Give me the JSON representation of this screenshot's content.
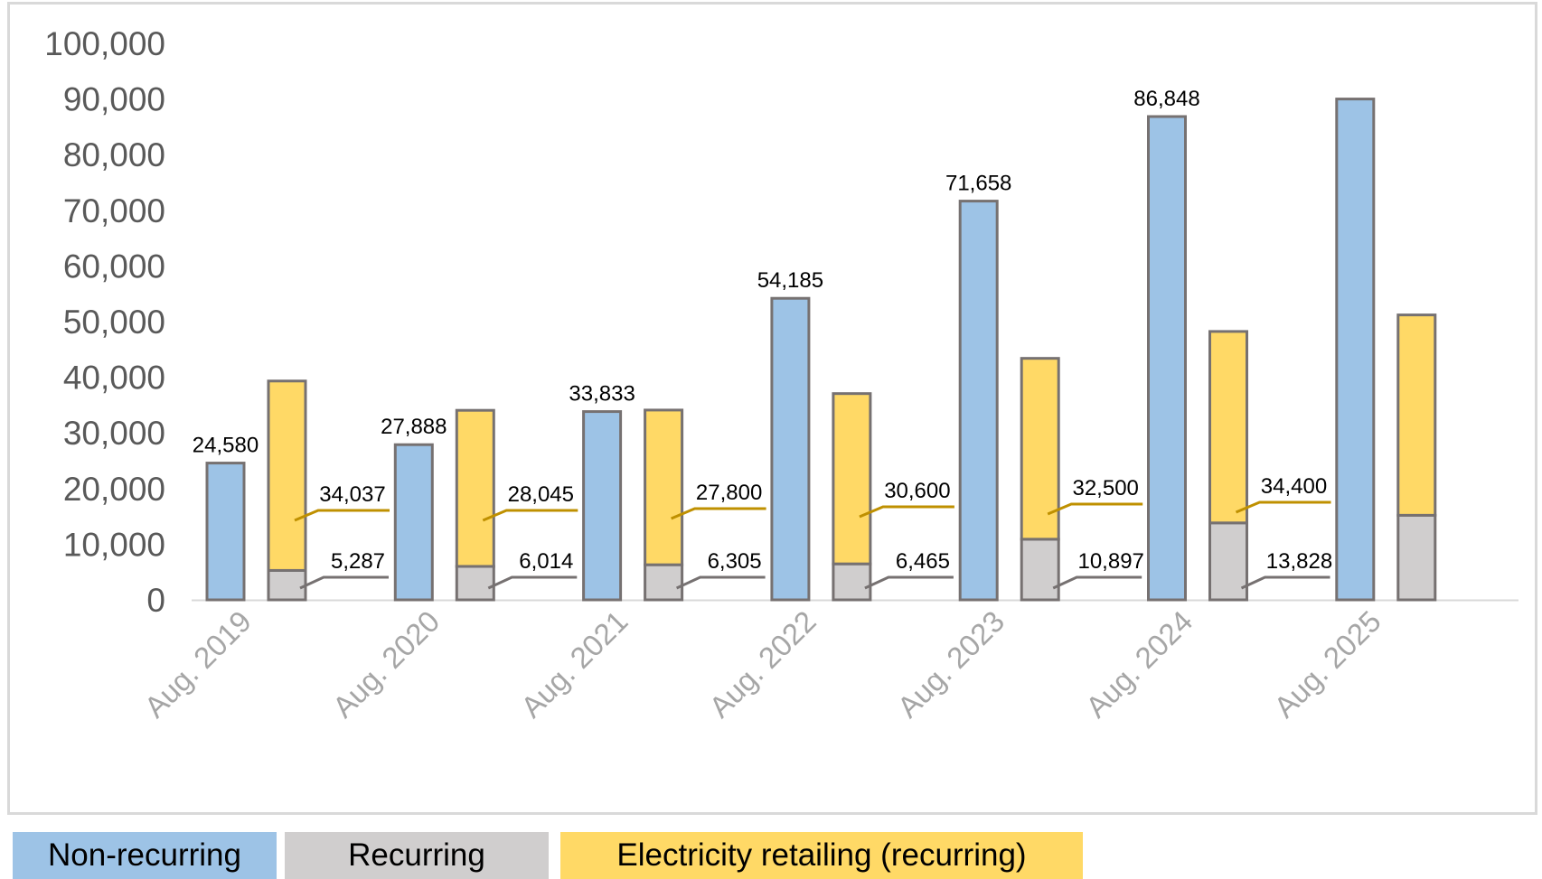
{
  "chart_data": {
    "type": "bar",
    "title": "",
    "xlabel": "",
    "ylabel": "",
    "ylim": [
      0,
      100000
    ],
    "yticks": [
      "0",
      "10,000",
      "20,000",
      "30,000",
      "40,000",
      "50,000",
      "60,000",
      "70,000",
      "80,000",
      "90,000",
      "100,000"
    ],
    "categories": [
      "Aug. 2019",
      "Aug. 2020",
      "Aug. 2021",
      "Aug. 2022",
      "Aug. 2023",
      "Aug. 2024",
      "Aug. 2025"
    ],
    "series": [
      {
        "name": "Non-recurring",
        "color": "#9dc3e6",
        "stack": "A",
        "values": [
          24580,
          27888,
          33833,
          54185,
          71658,
          86848,
          90000
        ],
        "labels": [
          "24,580",
          "27,888",
          "33,833",
          "54,185",
          "71,658",
          "86,848",
          ""
        ]
      },
      {
        "name": "Recurring",
        "color": "#d0cece",
        "stack": "B",
        "values": [
          5287,
          6014,
          6305,
          6465,
          10897,
          13828,
          15200
        ],
        "labels": [
          "5,287",
          "6,014",
          "6,305",
          "6,465",
          "10,897",
          "13,828",
          ""
        ]
      },
      {
        "name": "Electricity retailing (recurring)",
        "color": "#ffd966",
        "stack": "B",
        "values": [
          34037,
          28045,
          27800,
          30600,
          32500,
          34400,
          36000
        ],
        "labels": [
          "34,037",
          "28,045",
          "27,800",
          "30,600",
          "32,500",
          "34,400",
          ""
        ]
      }
    ],
    "grid": false,
    "legend_position": "bottom"
  },
  "legend": {
    "non_recurring": "Non-recurring",
    "recurring": "Recurring",
    "electricity": "Electricity retailing (recurring)"
  },
  "colors": {
    "non_recurring": "#9dc3e6",
    "recurring": "#d0cece",
    "electricity": "#ffd966",
    "bar_outline": "#767171",
    "elec_leader": "#bf9000",
    "rec_leader": "#767171"
  }
}
